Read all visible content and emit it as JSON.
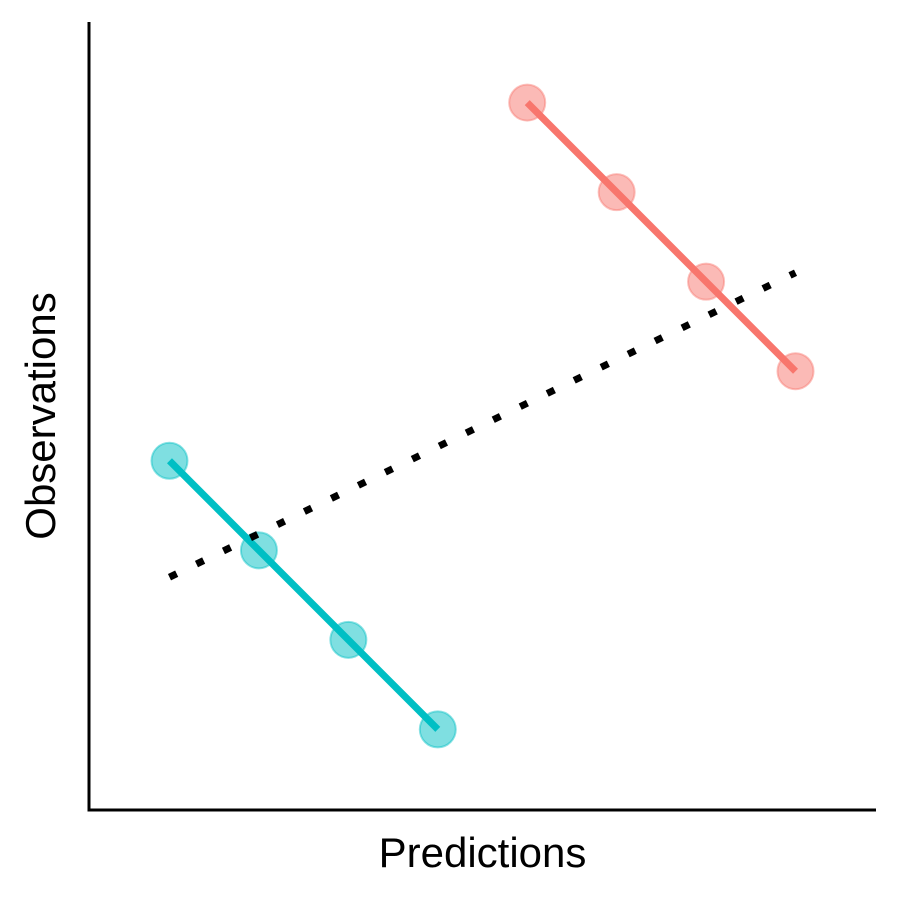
{
  "chart_data": {
    "type": "scatter",
    "title": "",
    "xlabel": "Predictions",
    "ylabel": "Observations",
    "xlim": [
      0.1,
      8.9
    ],
    "ylim": [
      0.1,
      8.9
    ],
    "grid": false,
    "legend": "none",
    "series": [
      {
        "color": "#F8766D",
        "x": [
          5,
          6,
          7,
          8
        ],
        "y": [
          8,
          7,
          6,
          5
        ]
      },
      {
        "color": "#00BFC4",
        "x": [
          1,
          2,
          3,
          4
        ],
        "y": [
          4,
          3,
          2,
          1
        ]
      }
    ],
    "overall_trend": {
      "x": [
        1,
        8
      ],
      "y": [
        2.7,
        6.1
      ],
      "color": "#000000",
      "style": "dotted"
    }
  }
}
